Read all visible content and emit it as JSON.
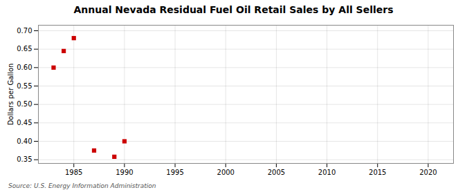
{
  "chart_data": {
    "type": "scatter",
    "title": "Annual Nevada Residual Fuel Oil Retail Sales by All Sellers",
    "ylabel": "Dollars per Gallon",
    "source": "Source: U.S. Energy Information Administration",
    "x": [
      1983,
      1984,
      1985,
      1987,
      1989,
      1990
    ],
    "values": [
      0.6,
      0.645,
      0.68,
      0.375,
      0.358,
      0.4
    ],
    "color": "#cc0000",
    "marker": "square",
    "xlim": [
      1981.5,
      2022.5
    ],
    "ylim": [
      0.34,
      0.715
    ],
    "xticks": [
      1985,
      1990,
      1995,
      2000,
      2005,
      2010,
      2015,
      2020
    ],
    "yticks": [
      0.35,
      {
        "value": 0.4,
        "label": "0.40"
      },
      0.45,
      {
        "value": 0.5,
        "label": "0.50"
      },
      0.55,
      {
        "value": 0.6,
        "label": "0.60"
      },
      0.65,
      {
        "value": 0.7,
        "label": "0.70"
      }
    ],
    "grid": true
  }
}
